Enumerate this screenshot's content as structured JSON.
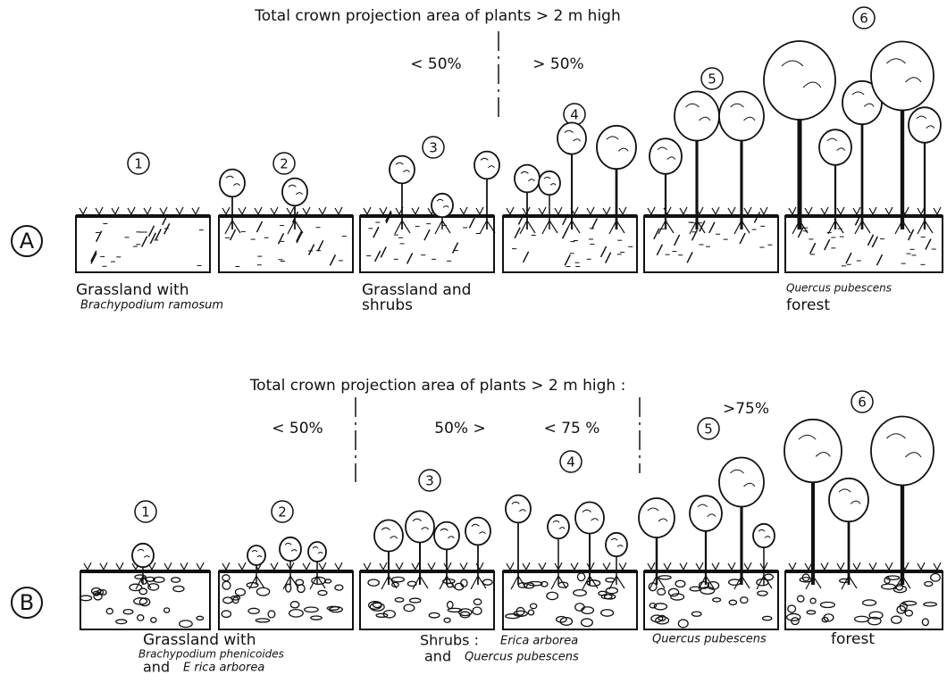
{
  "panels": [
    {
      "label": "A",
      "header": "Total crown projection area of plants  > 2 m  high",
      "thresholds": [
        "< 50%",
        "> 50%"
      ],
      "stages": [
        "1",
        "2",
        "3",
        "4",
        "5",
        "6"
      ],
      "captions": [
        "Grassland with",
        "Brachypodium ramosum",
        "Grassland and",
        "shrubs",
        "Quercus pubescens",
        "forest"
      ]
    },
    {
      "label": "B",
      "header": "Total  crown  projection  area  of  plants > 2 m  high :",
      "thresholds": [
        "< 50%",
        "50% >",
        "< 75 %",
        ">75%"
      ],
      "stages": [
        "1",
        "2",
        "3",
        "4",
        "5",
        "6"
      ],
      "captions": [
        "Grassland  with",
        "Brachypodium phenicoides",
        "and",
        "E rica  arborea",
        "Shrubs :",
        "Erica arborea",
        "and",
        "Quercus pubescens",
        "Quercus  pubescens",
        "forest"
      ]
    }
  ]
}
